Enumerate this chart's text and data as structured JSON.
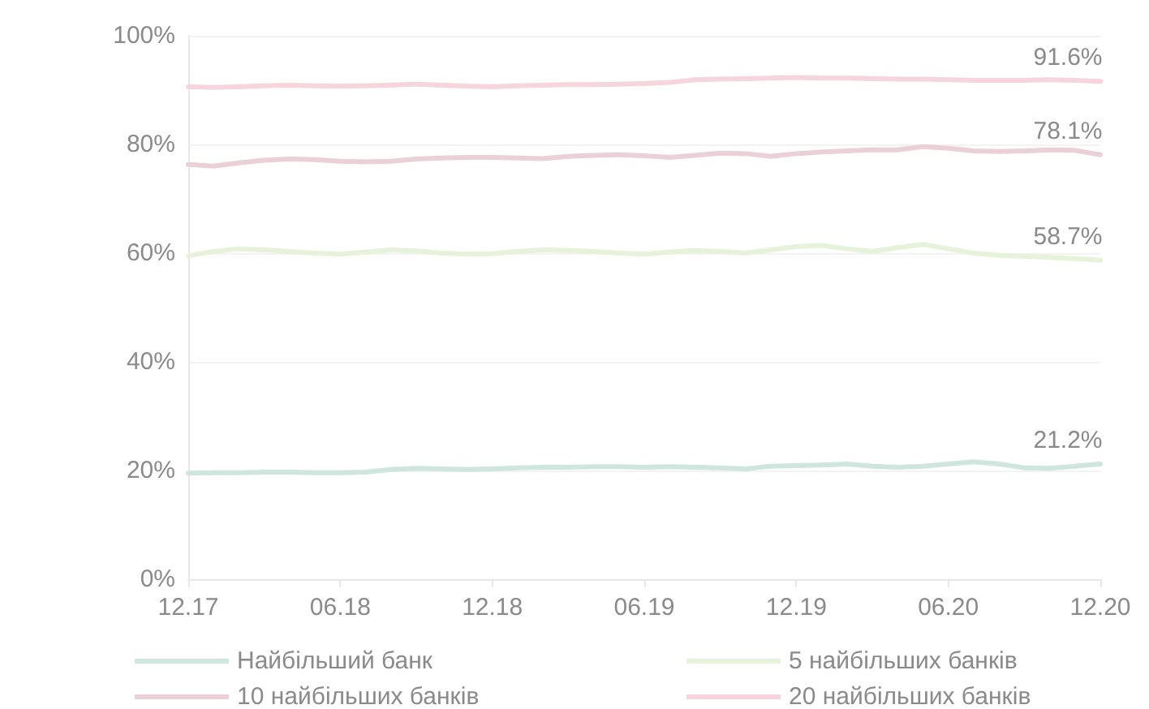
{
  "chart_data": {
    "type": "line",
    "categories": [
      "12.17",
      null,
      null,
      null,
      null,
      null,
      "06.18",
      null,
      null,
      null,
      null,
      null,
      "12.18",
      null,
      null,
      null,
      null,
      null,
      "06.19",
      null,
      null,
      null,
      null,
      null,
      "12.19",
      null,
      null,
      null,
      null,
      null,
      "06.20",
      null,
      null,
      null,
      null,
      null,
      "12.20"
    ],
    "series": [
      {
        "name": "Найбільший банк",
        "color": "#cfe6df",
        "values": [
          19.5,
          19.6,
          19.6,
          19.7,
          19.7,
          19.6,
          19.6,
          19.7,
          20.2,
          20.4,
          20.3,
          20.2,
          20.3,
          20.5,
          20.6,
          20.6,
          20.7,
          20.7,
          20.6,
          20.7,
          20.6,
          20.5,
          20.3,
          20.8,
          20.9,
          21.0,
          21.2,
          20.8,
          20.6,
          20.8,
          21.2,
          21.6,
          21.2,
          20.5,
          20.4,
          20.8,
          21.2
        ],
        "value_labels": [
          null,
          null,
          null,
          null,
          null,
          null,
          null,
          null,
          null,
          null,
          null,
          null,
          null,
          null,
          null,
          null,
          null,
          null,
          null,
          null,
          null,
          null,
          null,
          null,
          null,
          null,
          null,
          null,
          null,
          null,
          null,
          null,
          null,
          null,
          null,
          null,
          "21.2%"
        ]
      },
      {
        "name": "5 найбільших банків",
        "color": "#e6f2d9",
        "values": [
          59.5,
          60.3,
          60.8,
          60.6,
          60.3,
          60.0,
          59.8,
          60.2,
          60.6,
          60.4,
          60.0,
          59.8,
          59.9,
          60.3,
          60.6,
          60.5,
          60.3,
          60.0,
          59.8,
          60.2,
          60.5,
          60.3,
          60.0,
          60.6,
          61.2,
          61.4,
          60.8,
          60.3,
          61.0,
          61.6,
          60.8,
          60.0,
          59.6,
          59.4,
          59.2,
          59.0,
          58.7
        ],
        "value_labels": [
          null,
          null,
          null,
          null,
          null,
          null,
          null,
          null,
          null,
          null,
          null,
          null,
          null,
          null,
          null,
          null,
          null,
          null,
          null,
          null,
          null,
          null,
          null,
          null,
          null,
          null,
          null,
          null,
          null,
          null,
          null,
          null,
          null,
          null,
          null,
          null,
          "58.7%"
        ]
      },
      {
        "name": "10 найбільших банків",
        "color": "#ecd0d8",
        "values": [
          76.3,
          76.0,
          76.6,
          77.1,
          77.3,
          77.2,
          76.9,
          76.8,
          76.9,
          77.3,
          77.5,
          77.6,
          77.6,
          77.5,
          77.4,
          77.8,
          78.0,
          78.1,
          77.9,
          77.6,
          78.0,
          78.4,
          78.3,
          77.8,
          78.3,
          78.6,
          78.8,
          79.0,
          79.0,
          79.6,
          79.3,
          78.8,
          78.7,
          78.8,
          79.0,
          78.9,
          78.1
        ],
        "value_labels": [
          null,
          null,
          null,
          null,
          null,
          null,
          null,
          null,
          null,
          null,
          null,
          null,
          null,
          null,
          null,
          null,
          null,
          null,
          null,
          null,
          null,
          null,
          null,
          null,
          null,
          null,
          null,
          null,
          null,
          null,
          null,
          null,
          null,
          null,
          null,
          null,
          "78.1%"
        ]
      },
      {
        "name": "20 найбільших банків",
        "color": "#f6d6dc",
        "values": [
          90.6,
          90.5,
          90.6,
          90.8,
          90.9,
          90.8,
          90.7,
          90.8,
          90.9,
          91.1,
          90.9,
          90.7,
          90.6,
          90.8,
          90.9,
          91.0,
          91.0,
          91.1,
          91.2,
          91.4,
          91.9,
          92.0,
          92.1,
          92.2,
          92.3,
          92.2,
          92.2,
          92.1,
          92.0,
          92.0,
          91.9,
          91.8,
          91.8,
          91.8,
          91.9,
          91.8,
          91.6
        ],
        "value_labels": [
          null,
          null,
          null,
          null,
          null,
          null,
          null,
          null,
          null,
          null,
          null,
          null,
          null,
          null,
          null,
          null,
          null,
          null,
          null,
          null,
          null,
          null,
          null,
          null,
          null,
          null,
          null,
          null,
          null,
          null,
          null,
          null,
          null,
          null,
          null,
          null,
          "91.6%"
        ]
      }
    ],
    "ylim": [
      0,
      100
    ],
    "yticks": [
      {
        "value": 0,
        "label": "0%"
      },
      {
        "value": 20,
        "label": "20%"
      },
      {
        "value": 40,
        "label": "40%"
      },
      {
        "value": 60,
        "label": "60%"
      },
      {
        "value": 80,
        "label": "80%"
      },
      {
        "value": 100,
        "label": "100%"
      }
    ],
    "grid": "y",
    "legend": "bottom",
    "marker": "none",
    "line_style": "solid"
  }
}
